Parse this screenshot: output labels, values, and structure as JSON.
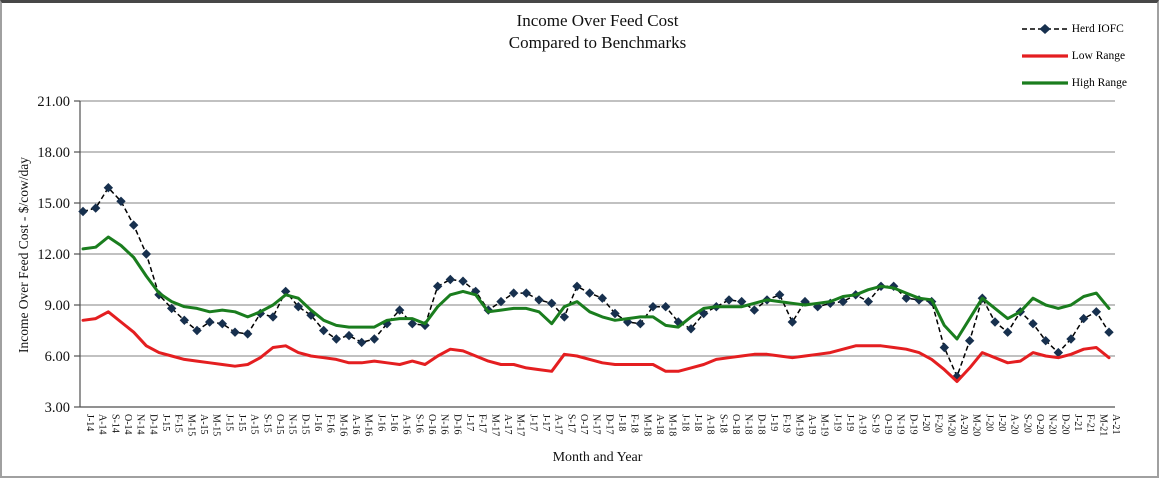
{
  "chart": {
    "title_line1": "Income Over Feed Cost",
    "title_line2": "Compared to Benchmarks",
    "y_axis_title": "Income Over Feed Cost - $/cow/day",
    "x_axis_title": "Month and Year"
  },
  "chart_data": {
    "type": "line",
    "title": "Income Over Feed Cost Compared to Benchmarks",
    "xlabel": "Month and Year",
    "ylabel": "Income Over Feed Cost - $/cow/day",
    "ylim": [
      3,
      21
    ],
    "grid": true,
    "legend_position": "top-right",
    "yticks": [
      {
        "value": 3,
        "label": "3.00"
      },
      {
        "value": 6,
        "label": "6.00"
      },
      {
        "value": 9,
        "label": "9.00"
      },
      {
        "value": 12,
        "label": "12.00"
      },
      {
        "value": 15,
        "label": "15.00"
      },
      {
        "value": 18,
        "label": "18.00"
      },
      {
        "value": 21,
        "label": "21.00"
      }
    ],
    "categories": [
      "J-14",
      "A-14",
      "S-14",
      "O-14",
      "N-14",
      "D-14",
      "J-15",
      "F-15",
      "M-15",
      "A-15",
      "M-15",
      "J-15",
      "J-15",
      "A-15",
      "S-15",
      "O-15",
      "N-15",
      "D-15",
      "J-16",
      "F-16",
      "M-16",
      "A-16",
      "M-16",
      "J-16",
      "J-16",
      "A-16",
      "S-16",
      "O-16",
      "N-16",
      "D-16",
      "J-17",
      "F-17",
      "M-17",
      "A-17",
      "M-17",
      "J-17",
      "J-17",
      "A-17",
      "S-17",
      "O-17",
      "N-17",
      "D-17",
      "J-18",
      "F-18",
      "M-18",
      "A-18",
      "M-18",
      "J-18",
      "J-18",
      "A-18",
      "S-18",
      "O-18",
      "N-18",
      "D-18",
      "J-19",
      "F-19",
      "M-19",
      "A-19",
      "M-19",
      "J-19",
      "J-19",
      "A-19",
      "S-19",
      "O-19",
      "N-19",
      "D-19",
      "J-20",
      "F-20",
      "M-20",
      "A-20",
      "M-20",
      "J-20",
      "J-20",
      "A-20",
      "S-20",
      "O-20",
      "N-20",
      "D-20",
      "J-21",
      "F-21",
      "M-21",
      "A-21"
    ],
    "series": [
      {
        "name": "Herd IOFC",
        "style": "dashed-diamond",
        "color": "#17304e",
        "line_color": "#000000",
        "values": [
          14.5,
          14.7,
          15.9,
          15.1,
          13.7,
          12.0,
          9.6,
          8.8,
          8.1,
          7.5,
          8.0,
          7.9,
          7.4,
          7.3,
          8.5,
          8.3,
          9.8,
          8.9,
          8.4,
          7.5,
          7.0,
          7.2,
          6.8,
          7.0,
          7.9,
          8.7,
          7.9,
          7.8,
          10.1,
          10.5,
          10.4,
          9.8,
          8.7,
          9.2,
          9.7,
          9.7,
          9.3,
          9.1,
          8.3,
          10.1,
          9.7,
          9.4,
          8.5,
          8.0,
          7.9,
          8.9,
          8.9,
          8.0,
          7.6,
          8.5,
          8.9,
          9.3,
          9.2,
          8.7,
          9.3,
          9.6,
          8.0,
          9.2,
          8.9,
          9.1,
          9.2,
          9.6,
          9.2,
          10.1,
          10.1,
          9.4,
          9.3,
          9.2,
          6.5,
          4.8,
          6.9,
          9.4,
          8.0,
          7.4,
          8.6,
          7.9,
          6.9,
          6.2,
          7.0,
          8.2,
          8.6,
          7.4
        ]
      },
      {
        "name": "Low Range",
        "style": "solid",
        "color": "#e41e20",
        "values": [
          8.1,
          8.2,
          8.6,
          8.0,
          7.4,
          6.6,
          6.2,
          6.0,
          5.8,
          5.7,
          5.6,
          5.5,
          5.4,
          5.5,
          5.9,
          6.5,
          6.6,
          6.2,
          6.0,
          5.9,
          5.8,
          5.6,
          5.6,
          5.7,
          5.6,
          5.5,
          5.7,
          5.5,
          6.0,
          6.4,
          6.3,
          6.0,
          5.7,
          5.5,
          5.5,
          5.3,
          5.2,
          5.1,
          6.1,
          6.0,
          5.8,
          5.6,
          5.5,
          5.5,
          5.5,
          5.5,
          5.1,
          5.1,
          5.3,
          5.5,
          5.8,
          5.9,
          6.0,
          6.1,
          6.1,
          6.0,
          5.9,
          6.0,
          6.1,
          6.2,
          6.4,
          6.6,
          6.6,
          6.6,
          6.5,
          6.4,
          6.2,
          5.8,
          5.2,
          4.5,
          5.3,
          6.2,
          5.9,
          5.6,
          5.7,
          6.2,
          6.0,
          5.9,
          6.1,
          6.4,
          6.5,
          5.9
        ]
      },
      {
        "name": "High Range",
        "style": "solid",
        "color": "#1a7d1e",
        "values": [
          12.3,
          12.4,
          13.0,
          12.5,
          11.8,
          10.7,
          9.7,
          9.2,
          8.9,
          8.8,
          8.6,
          8.7,
          8.6,
          8.3,
          8.6,
          9.0,
          9.6,
          9.4,
          8.7,
          8.1,
          7.8,
          7.7,
          7.7,
          7.7,
          8.1,
          8.2,
          8.2,
          7.9,
          8.9,
          9.6,
          9.8,
          9.6,
          8.6,
          8.7,
          8.8,
          8.8,
          8.6,
          7.9,
          8.9,
          9.2,
          8.6,
          8.3,
          8.1,
          8.2,
          8.3,
          8.3,
          7.8,
          7.7,
          8.3,
          8.8,
          8.9,
          8.9,
          8.9,
          9.1,
          9.3,
          9.2,
          9.1,
          9.0,
          9.1,
          9.2,
          9.5,
          9.6,
          9.9,
          10.1,
          10.0,
          9.7,
          9.4,
          9.3,
          7.8,
          7.0,
          8.2,
          9.4,
          8.8,
          8.2,
          8.6,
          9.4,
          9.0,
          8.8,
          9.0,
          9.5,
          9.7,
          8.8
        ]
      }
    ]
  }
}
